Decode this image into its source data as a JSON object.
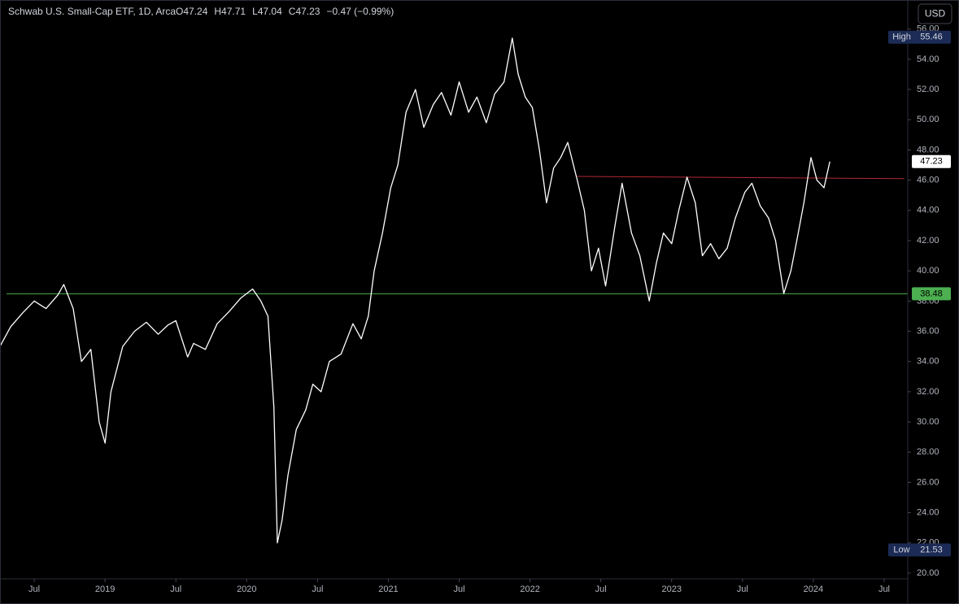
{
  "chart_data": {
    "type": "line",
    "title": "Schwab U.S. Small-Cap ETF, 1D, Arca",
    "ohlc": [
      "O47.24",
      "H47.71",
      "L47.04",
      "C47.23"
    ],
    "change": "−0.47 (−0.99%)",
    "currency": "USD",
    "x": [
      3.1,
      4,
      5,
      6,
      7,
      8,
      8.5,
      9.3,
      10,
      10.8,
      11.5,
      12,
      12.5,
      13.5,
      14.5,
      15.5,
      16.5,
      17.3,
      18,
      19,
      19.5,
      20.5,
      21.5,
      22.5,
      23.5,
      24.5,
      25.2,
      25.8,
      26.3,
      26.6,
      27,
      27.5,
      28.2,
      29,
      29.6,
      30.3,
      31,
      32,
      33,
      33.7,
      34.3,
      34.8,
      35.5,
      36.2,
      36.8,
      37.5,
      38.3,
      39,
      39.8,
      40.5,
      41.3,
      42,
      42.8,
      43.5,
      44.3,
      45,
      45.8,
      46.5,
      47,
      47.6,
      48.2,
      48.8,
      49.4,
      50,
      50.6,
      51.2,
      52,
      52.6,
      53.2,
      53.8,
      54.4,
      55.2,
      55.8,
      56.6,
      57.3,
      58.1,
      58.7,
      59.3,
      60,
      60.6,
      61.3,
      62,
      62.6,
      63.3,
      64,
      64.7,
      65.4,
      66.2,
      66.8,
      67.5,
      68.2,
      68.8,
      69.5,
      70.1,
      70.6,
      71.2,
      71.8,
      72.3,
      72.9,
      73.4
    ],
    "series": [
      {
        "color": "#ffffff",
        "values": [
          35,
          36.3,
          37.2,
          38,
          37.5,
          38.4,
          39.1,
          37.5,
          34,
          34.8,
          30,
          28.6,
          32,
          35,
          36,
          36.6,
          35.8,
          36.4,
          36.7,
          34.3,
          35.2,
          34.8,
          36.5,
          37.3,
          38.2,
          38.8,
          38,
          37,
          31,
          22,
          23.5,
          26.5,
          29.5,
          30.8,
          32.5,
          32,
          34,
          34.5,
          36.5,
          35.5,
          37,
          40,
          42.5,
          45.5,
          47,
          50.5,
          52,
          49.5,
          51,
          51.8,
          50.3,
          52.5,
          50.5,
          51.5,
          49.8,
          51.7,
          52.5,
          55.4,
          53,
          51.5,
          50.8,
          48,
          44.5,
          46.8,
          47.5,
          48.5,
          46,
          44,
          40,
          41.5,
          39,
          43,
          45.8,
          42.5,
          41,
          38,
          40.5,
          42.5,
          41.8,
          44,
          46.2,
          44.5,
          41,
          41.8,
          40.8,
          41.5,
          43.5,
          45.2,
          45.8,
          44.3,
          43.5,
          42,
          38.5,
          40,
          42,
          44.5,
          47.5,
          46,
          45.5,
          47.23
        ]
      }
    ],
    "xlim": [
      3.1,
      80
    ],
    "xticks": [
      {
        "value": 6,
        "label": "Jul"
      },
      {
        "value": 12,
        "label": "2019"
      },
      {
        "value": 18,
        "label": "Jul"
      },
      {
        "value": 24,
        "label": "2020"
      },
      {
        "value": 30,
        "label": "Jul"
      },
      {
        "value": 36,
        "label": "2021"
      },
      {
        "value": 42,
        "label": "Jul"
      },
      {
        "value": 48,
        "label": "2022"
      },
      {
        "value": 54,
        "label": "Jul"
      },
      {
        "value": 60,
        "label": "2023"
      },
      {
        "value": 66,
        "label": "Jul"
      },
      {
        "value": 72,
        "label": "2024"
      },
      {
        "value": 78,
        "label": "Jul"
      }
    ],
    "ylim": [
      19.62,
      56.31
    ],
    "yticks": [
      {
        "value": 20,
        "label": "20.00"
      },
      {
        "value": 22,
        "label": "22.00"
      },
      {
        "value": 24,
        "label": "24.00"
      },
      {
        "value": 26,
        "label": "26.00"
      },
      {
        "value": 28,
        "label": "28.00"
      },
      {
        "value": 30,
        "label": "30.00"
      },
      {
        "value": 32,
        "label": "32.00"
      },
      {
        "value": 34,
        "label": "34.00"
      },
      {
        "value": 36,
        "label": "36.00"
      },
      {
        "value": 38,
        "label": "38.00"
      },
      {
        "value": 40,
        "label": "40.00"
      },
      {
        "value": 42,
        "label": "42.00"
      },
      {
        "value": 44,
        "label": "44.00"
      },
      {
        "value": 46,
        "label": "46.00"
      },
      {
        "value": 48,
        "label": "48.00"
      },
      {
        "value": 50,
        "label": "50.00"
      },
      {
        "value": 52,
        "label": "52.00"
      },
      {
        "value": 54,
        "label": "54.00"
      },
      {
        "value": 56,
        "label": "56.00"
      }
    ],
    "support": {
      "value": 38.48,
      "color": "#4caf50"
    },
    "resistance": {
      "x": [
        52,
        79.7
      ],
      "values": [
        46.25,
        46.1
      ],
      "color": "#b22833"
    },
    "high": {
      "label": "High",
      "value": 55.46
    },
    "low": {
      "label": "Low",
      "value": 21.53
    },
    "last": 47.23
  }
}
